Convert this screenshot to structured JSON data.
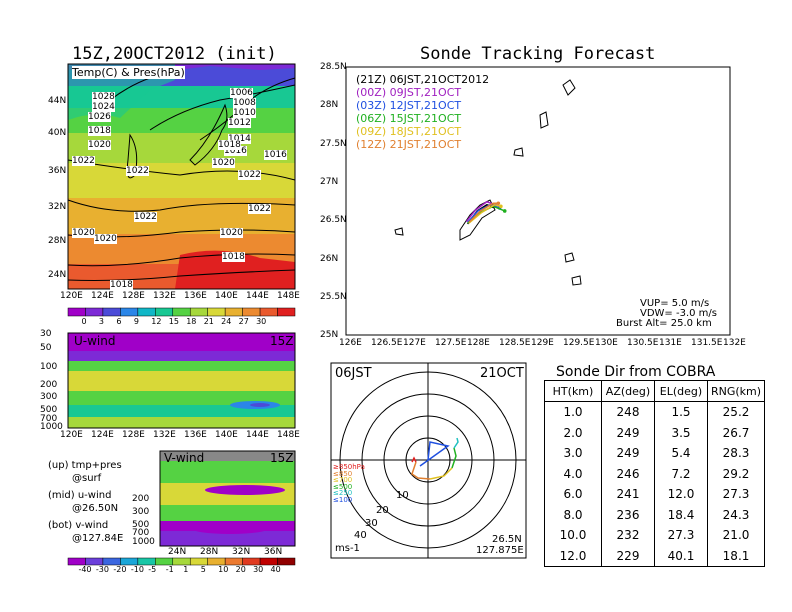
{
  "left": {
    "title": "15Z,20OCT2012 (init)",
    "map_label": "Temp(C) & Pres(hPa)",
    "lat_ticks": [
      "44N",
      "40N",
      "36N",
      "32N",
      "28N",
      "24N"
    ],
    "lon_ticks": [
      "120E",
      "124E",
      "128E",
      "132E",
      "136E",
      "140E",
      "144E",
      "148E"
    ],
    "isobars": [
      "1028",
      "1024",
      "1026",
      "1020",
      "1018",
      "1022",
      "1022",
      "1022",
      "1022",
      "1020",
      "1020",
      "1020",
      "1020",
      "1018",
      "1018",
      "1006",
      "1008",
      "1010",
      "1012",
      "1014",
      "1016",
      "1016",
      "1018",
      "1022"
    ],
    "colorbar_ticks": [
      "0",
      "3",
      "6",
      "9",
      "12",
      "15",
      "18",
      "21",
      "24",
      "27",
      "30"
    ],
    "colorbar_colors": [
      "#a000c8",
      "#7d2ad6",
      "#4b4bd8",
      "#2b86e8",
      "#10b7c7",
      "#18c893",
      "#55d243",
      "#a6d83b",
      "#d8d838",
      "#e8b030",
      "#ec8a30",
      "#ea5a2e",
      "#e02020"
    ]
  },
  "uwind": {
    "label": "U-wind",
    "time": "15Z",
    "p_ticks": [
      "30",
      "50",
      "100",
      "200",
      "300",
      "500",
      "700",
      "1000"
    ],
    "lon_ticks": [
      "120E",
      "124E",
      "128E",
      "132E",
      "136E",
      "140E",
      "144E",
      "148E"
    ]
  },
  "vwind": {
    "label": "V-wind",
    "time": "15Z",
    "p_ticks": [
      "200",
      "300",
      "500",
      "700",
      "1000"
    ],
    "lat_ticks": [
      "24N",
      "28N",
      "32N",
      "36N"
    ],
    "colorbar_ticks": [
      "-40",
      "-30",
      "-20",
      "-10",
      "-5",
      "-1",
      "1",
      "5",
      "10",
      "20",
      "30",
      "40"
    ],
    "colorbar_colors": [
      "#a000c8",
      "#6b3fdb",
      "#3a66e0",
      "#1aa6d8",
      "#18c6a6",
      "#55d243",
      "#a6d83b",
      "#d8d838",
      "#e8b030",
      "#ec7a30",
      "#e03a20",
      "#c00000",
      "#900000"
    ]
  },
  "legend_notes": [
    {
      "a": "(up) tmp+pres",
      "b": "@surf"
    },
    {
      "a": "(mid) u-wind",
      "b": "@26.50N"
    },
    {
      "a": "(bot) v-wind",
      "b": "@127.84E"
    }
  ],
  "tracking": {
    "title": "Sonde Tracking Forecast",
    "lat_ticks": [
      "28.5N",
      "28N",
      "27.5N",
      "27N",
      "26.5N",
      "26N",
      "25.5N",
      "25N"
    ],
    "lon_ticks": [
      "126E",
      "126.5E",
      "127E",
      "127.5E",
      "128E",
      "128.5E",
      "129E",
      "129.5E",
      "130E",
      "130.5E",
      "131E",
      "131.5E",
      "132E"
    ],
    "legend": [
      {
        "text": "(21Z) 06JST,21OCT2012",
        "color": "#000000"
      },
      {
        "text": "(00Z) 09JST,21OCT",
        "color": "#a020c0"
      },
      {
        "text": "(03Z) 12JST,21OCT",
        "color": "#2050e0"
      },
      {
        "text": "(06Z) 15JST,21OCT",
        "color": "#20b020"
      },
      {
        "text": "(09Z) 18JST,21OCT",
        "color": "#e0c020"
      },
      {
        "text": "(12Z) 21JST,21OCT",
        "color": "#e08030"
      }
    ],
    "params": [
      "VUP= 5.0 m/s",
      "VDW= -3.0 m/s",
      "Burst Alt= 25.0 km"
    ]
  },
  "polar": {
    "top_left": "06JST",
    "top_right": "21OCT",
    "bottom_left": "ms-1",
    "bottom_right_1": "26.5N",
    "bottom_right_2": "127.875E",
    "ring_labels": [
      "10",
      "20",
      "30",
      "40"
    ],
    "level_legend": [
      {
        "text": "≥850hPa",
        "color": "#e02020"
      },
      {
        "text": "≤850",
        "color": "#e08030"
      },
      {
        "text": "≤700",
        "color": "#e0c020"
      },
      {
        "text": "≤500",
        "color": "#20b020"
      },
      {
        "text": "≤250",
        "color": "#20c0c0"
      },
      {
        "text": "≤100",
        "color": "#2050e0"
      }
    ]
  },
  "sonde_table": {
    "title": "Sonde Dir from COBRA",
    "headers": [
      "HT(km)",
      "AZ(deg)",
      "EL(deg)",
      "RNG(km)"
    ],
    "rows": [
      [
        "1.0",
        "248",
        "1.5",
        "25.2"
      ],
      [
        "2.0",
        "249",
        "3.5",
        "26.7"
      ],
      [
        "3.0",
        "249",
        "5.4",
        "28.3"
      ],
      [
        "4.0",
        "246",
        "7.2",
        "29.2"
      ],
      [
        "6.0",
        "241",
        "12.0",
        "27.3"
      ],
      [
        "8.0",
        "236",
        "18.4",
        "24.3"
      ],
      [
        "10.0",
        "232",
        "27.3",
        "21.0"
      ],
      [
        "12.0",
        "229",
        "40.1",
        "18.1"
      ]
    ]
  },
  "chart_data": [
    {
      "type": "heatmap",
      "title": "15Z,20OCT2012 (init)",
      "subtitle": "Temp(C) & Pres(hPa)",
      "x_ticks": [
        "120E",
        "124E",
        "128E",
        "132E",
        "136E",
        "140E",
        "144E",
        "148E"
      ],
      "y_ticks": [
        "24N",
        "28N",
        "32N",
        "36N",
        "40N",
        "44N"
      ],
      "colorbar": [
        0,
        3,
        6,
        9,
        12,
        15,
        18,
        21,
        24,
        27,
        30
      ],
      "contour_labels": [
        1028,
        1024,
        1026,
        1020,
        1018,
        1022,
        1022,
        1022,
        1022,
        1020,
        1020,
        1020,
        1020,
        1018,
        1018,
        1006,
        1008,
        1010,
        1012,
        1014,
        1016,
        1016,
        1018,
        1022
      ]
    },
    {
      "type": "heatmap",
      "title": "U-wind 15Z",
      "y_ticks": [
        30,
        50,
        100,
        200,
        300,
        500,
        700,
        1000
      ],
      "x_ticks": [
        "120E",
        "124E",
        "128E",
        "132E",
        "136E",
        "140E",
        "144E",
        "148E"
      ]
    },
    {
      "type": "heatmap",
      "title": "V-wind 15Z",
      "y_ticks": [
        200,
        300,
        500,
        700,
        1000
      ],
      "x_ticks": [
        "24N",
        "28N",
        "32N",
        "36N"
      ],
      "colorbar": [
        -40,
        -30,
        -20,
        -10,
        -5,
        -1,
        1,
        5,
        10,
        20,
        30,
        40
      ]
    },
    {
      "type": "line",
      "title": "Sonde Tracking Forecast",
      "xlim": [
        126,
        132
      ],
      "ylim": [
        25,
        28.5
      ],
      "series": [
        {
          "name": "(21Z) 06JST,21OCT2012",
          "x": [
            127.9,
            128.05,
            128.2,
            128.3
          ],
          "y": [
            26.45,
            26.62,
            26.7,
            26.68
          ]
        },
        {
          "name": "(00Z) 09JST,21OCT",
          "x": [
            127.88,
            128.02,
            128.2,
            128.33
          ],
          "y": [
            26.48,
            26.63,
            26.74,
            26.7
          ]
        },
        {
          "name": "(03Z) 12JST,21OCT",
          "x": [
            127.9,
            128.06,
            128.25,
            128.4
          ],
          "y": [
            26.47,
            26.62,
            26.7,
            26.66
          ]
        },
        {
          "name": "(06Z) 15JST,21OCT",
          "x": [
            127.9,
            128.1,
            128.3,
            128.48
          ],
          "y": [
            26.46,
            26.6,
            26.68,
            26.62
          ]
        },
        {
          "name": "(09Z) 18JST,21OCT",
          "x": [
            127.92,
            128.12,
            128.32,
            128.42
          ],
          "y": [
            26.46,
            26.6,
            26.7,
            26.68
          ]
        },
        {
          "name": "(12Z) 21JST,21OCT",
          "x": [
            127.92,
            128.1,
            128.3,
            128.38
          ],
          "y": [
            26.47,
            26.62,
            26.72,
            26.72
          ]
        }
      ]
    },
    {
      "type": "table",
      "title": "Sonde Dir from COBRA",
      "columns": [
        "HT(km)",
        "AZ(deg)",
        "EL(deg)",
        "RNG(km)"
      ],
      "rows": [
        [
          1.0,
          248,
          1.5,
          25.2
        ],
        [
          2.0,
          249,
          3.5,
          26.7
        ],
        [
          3.0,
          249,
          5.4,
          28.3
        ],
        [
          4.0,
          246,
          7.2,
          29.2
        ],
        [
          6.0,
          241,
          12.0,
          27.3
        ],
        [
          8.0,
          236,
          18.4,
          24.3
        ],
        [
          10.0,
          232,
          27.3,
          21.0
        ],
        [
          12.0,
          229,
          40.1,
          18.1
        ]
      ]
    }
  ]
}
